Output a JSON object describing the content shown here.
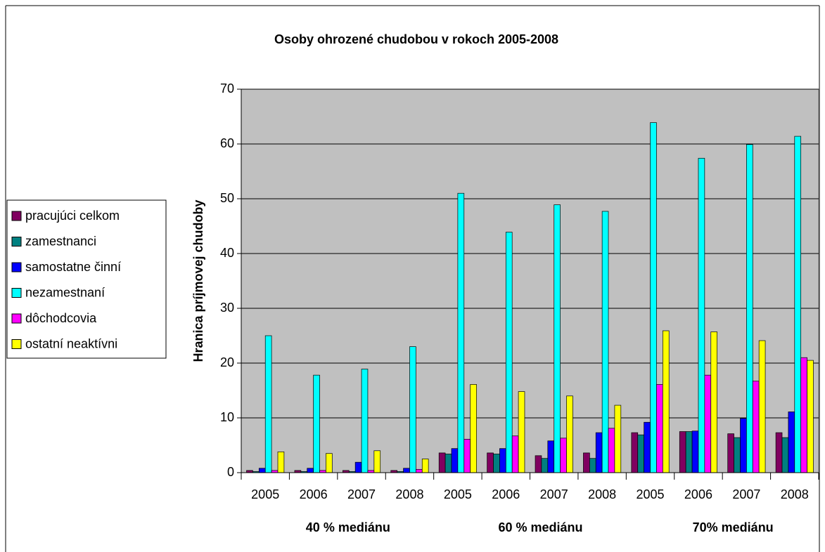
{
  "chart_data": {
    "type": "bar",
    "title": "Osoby ohrozené chudobou v rokoch 2005-2008",
    "ylabel": "Hranica príjmovej chudoby",
    "categories": [
      "2005",
      "2006",
      "2007",
      "2008",
      "2005",
      "2006",
      "2007",
      "2008",
      "2005",
      "2006",
      "2007",
      "2008"
    ],
    "category_groups": [
      "40 % mediánu",
      "60 % mediánu",
      "70% mediánu"
    ],
    "ylim": [
      0,
      70
    ],
    "yticks": [
      0,
      10,
      20,
      30,
      40,
      50,
      60,
      70
    ],
    "grid": true,
    "legend": "left",
    "series": [
      {
        "name": "pracujúci celkom",
        "color": "#800060",
        "values": [
          0.4,
          0.4,
          0.4,
          0.4,
          3.6,
          3.6,
          3.1,
          3.6,
          7.3,
          7.5,
          7.1,
          7.3
        ]
      },
      {
        "name": "zamestnanci",
        "color": "#008080",
        "values": [
          0.2,
          0.2,
          0.2,
          0.2,
          3.4,
          3.4,
          2.6,
          2.6,
          6.9,
          7.5,
          6.4,
          6.4
        ]
      },
      {
        "name": "samostatne činní",
        "color": "#0000ff",
        "values": [
          0.8,
          0.8,
          1.9,
          0.8,
          4.4,
          4.4,
          5.8,
          7.3,
          9.2,
          7.6,
          9.9,
          11.1
        ]
      },
      {
        "name": "nezamestnaní",
        "color": "#00ffff",
        "values": [
          25,
          17.8,
          18.9,
          23,
          51,
          43.9,
          48.9,
          47.7,
          63.9,
          57.4,
          59.9,
          61.4
        ]
      },
      {
        "name": "dôchodcovia",
        "color": "#ff00ff",
        "values": [
          0.4,
          0.4,
          0.4,
          0.6,
          6.1,
          6.7,
          6.3,
          8.1,
          16.1,
          17.8,
          16.7,
          21.0
        ]
      },
      {
        "name": "ostatní neaktívni",
        "color": "#ffff00",
        "values": [
          3.8,
          3.5,
          4.0,
          2.5,
          16.1,
          14.8,
          14.0,
          12.3,
          25.9,
          25.7,
          24.1,
          20.5
        ]
      }
    ]
  }
}
